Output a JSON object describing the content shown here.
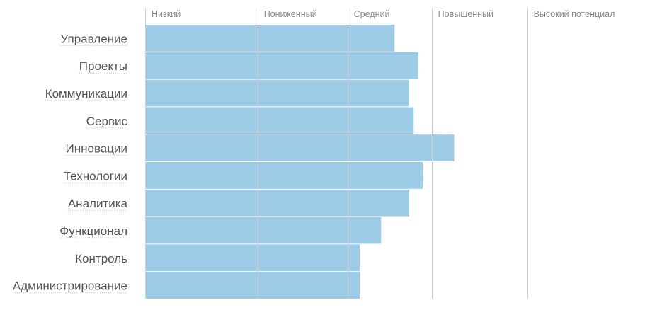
{
  "chart_data": {
    "type": "bar",
    "orientation": "horizontal",
    "title": "",
    "xlabel": "",
    "ylabel": "",
    "bands": [
      "Низкий",
      "Пониженный",
      "Средний",
      "Повышенный",
      "Высокий потенциал"
    ],
    "band_starts": [
      0,
      1,
      1.8,
      2.55,
      3.4
    ],
    "xlim": [
      0,
      4.6
    ],
    "categories": [
      "Управление",
      "Проекты",
      "Коммуникации",
      "Сервис",
      "Инновации",
      "Технологии",
      "Аналитика",
      "Функционал",
      "Контроль",
      "Администрирование"
    ],
    "values": [
      2.22,
      2.43,
      2.35,
      2.39,
      2.75,
      2.47,
      2.35,
      2.1,
      1.91,
      1.91
    ],
    "colors": {
      "bar": "#9ecce6",
      "band_line": "#cfcfcf",
      "label": "#555555",
      "band_label": "#8a8a8a"
    },
    "grid": true,
    "legend": "none"
  }
}
